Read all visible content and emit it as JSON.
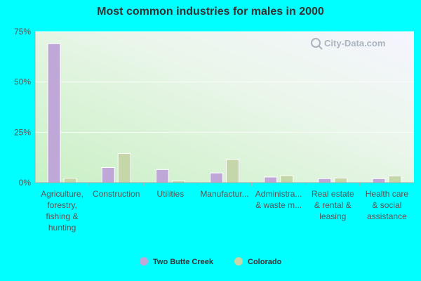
{
  "chart_data": {
    "type": "bar",
    "title": "Most common industries for males in 2000",
    "categories": [
      [
        "Agriculture,",
        "forestry,",
        "fishing &",
        "hunting"
      ],
      [
        "Construction"
      ],
      [
        "Utilities"
      ],
      [
        "Manufactur..."
      ],
      [
        "Administra...",
        "& waste m..."
      ],
      [
        "Real estate",
        "& rental &",
        "leasing"
      ],
      [
        "Health care",
        "& social",
        "assistance"
      ]
    ],
    "series": [
      {
        "name": "Two Butte Creek",
        "color": "#bfa8d8",
        "values": [
          69,
          7.5,
          6.5,
          4.8,
          2.8,
          2.0,
          2.0
        ]
      },
      {
        "name": "Colorado",
        "color": "#c5d6a8",
        "values": [
          2.2,
          14.5,
          1.0,
          11.5,
          3.5,
          2.3,
          3.3
        ]
      }
    ],
    "y_ticks": [
      {
        "value": 0,
        "label": "0%"
      },
      {
        "value": 25,
        "label": "25%"
      },
      {
        "value": 50,
        "label": "50%"
      },
      {
        "value": 75,
        "label": "75%"
      }
    ],
    "ylim": [
      0,
      75
    ],
    "grid": true,
    "legend_position": "bottom",
    "watermark": "City-Data.com"
  }
}
